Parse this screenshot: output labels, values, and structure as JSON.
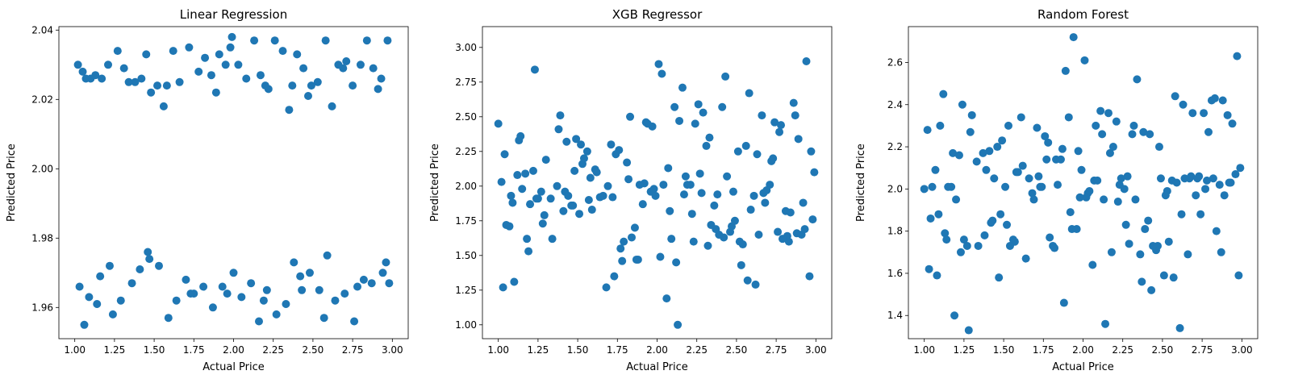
{
  "figure": {
    "background": "#ffffff",
    "marker_color": "#1f77b4"
  },
  "chart_data": [
    {
      "type": "scatter",
      "title": "Linear Regression",
      "xlabel": "Actual Price",
      "ylabel": "Predicted Price",
      "xlim": [
        0.9,
        3.1
      ],
      "ylim": [
        1.951,
        2.041
      ],
      "xticks": [
        "1.00",
        "1.25",
        "1.50",
        "1.75",
        "2.00",
        "2.25",
        "2.50",
        "2.75",
        "3.00"
      ],
      "yticks": [
        "1.96",
        "1.98",
        "2.00",
        "2.02",
        "2.04"
      ],
      "grid": false,
      "series": [
        {
          "color": "#1f77b4",
          "x": [
            1.02,
            1.05,
            1.07,
            1.13,
            1.17,
            1.21,
            1.27,
            1.31,
            1.38,
            1.45,
            1.48,
            1.52,
            1.56,
            1.62,
            1.66,
            1.72,
            1.78,
            1.82,
            1.86,
            1.91,
            1.95,
            1.99,
            2.03,
            2.08,
            2.13,
            2.17,
            2.22,
            2.26,
            2.31,
            2.35,
            2.4,
            2.44,
            2.49,
            2.53,
            2.58,
            2.62,
            2.66,
            2.71,
            2.75,
            2.8,
            2.84,
            2.88,
            2.93,
            2.97,
            1.1,
            1.34,
            1.58,
            1.89,
            2.2,
            2.47,
            2.69,
            2.91,
            1.42,
            1.98,
            2.37,
            1.03,
            1.09,
            1.16,
            1.24,
            1.29,
            1.36,
            1.41,
            1.47,
            1.53,
            1.59,
            1.64,
            1.7,
            1.75,
            1.81,
            1.87,
            1.93,
            2.0,
            2.05,
            2.11,
            2.16,
            2.21,
            2.27,
            2.33,
            2.38,
            2.43,
            2.48,
            2.54,
            2.59,
            2.64,
            2.7,
            2.76,
            2.82,
            2.87,
            2.94,
            2.98,
            1.06,
            1.14,
            1.22,
            1.46,
            1.73,
            1.96,
            2.19,
            2.42,
            2.57,
            2.78,
            2.96
          ],
          "y": [
            2.03,
            2.028,
            2.026,
            2.027,
            2.026,
            2.03,
            2.034,
            2.029,
            2.025,
            2.033,
            2.022,
            2.024,
            2.018,
            2.034,
            2.025,
            2.035,
            2.028,
            2.032,
            2.027,
            2.033,
            2.03,
            2.038,
            2.03,
            2.026,
            2.037,
            2.027,
            2.023,
            2.037,
            2.034,
            2.017,
            2.033,
            2.029,
            2.024,
            2.025,
            2.037,
            2.018,
            2.03,
            2.031,
            2.024,
            2.03,
            2.037,
            2.029,
            2.026,
            2.037,
            2.026,
            2.025,
            2.024,
            2.022,
            2.024,
            2.021,
            2.029,
            2.023,
            2.026,
            2.035,
            2.024,
            1.966,
            1.963,
            1.969,
            1.958,
            1.962,
            1.967,
            1.971,
            1.974,
            1.972,
            1.957,
            1.962,
            1.968,
            1.964,
            1.966,
            1.96,
            1.966,
            1.97,
            1.963,
            1.967,
            1.956,
            1.965,
            1.958,
            1.961,
            1.973,
            1.965,
            1.97,
            1.965,
            1.975,
            1.962,
            1.964,
            1.956,
            1.968,
            1.967,
            1.97,
            1.967,
            1.955,
            1.961,
            1.972,
            1.976,
            1.964,
            1.964,
            1.962,
            1.969,
            1.957,
            1.966,
            1.973
          ]
        }
      ]
    },
    {
      "type": "scatter",
      "title": "XGB Regressor",
      "xlabel": "Actual Price",
      "ylabel": "Predicted Price",
      "xlim": [
        0.9,
        3.1
      ],
      "ylim": [
        0.9,
        3.15
      ],
      "xticks": [
        "1.00",
        "1.25",
        "1.50",
        "1.75",
        "2.00",
        "2.25",
        "2.50",
        "2.75",
        "3.00"
      ],
      "yticks": [
        "1.00",
        "1.25",
        "1.50",
        "1.75",
        "2.00",
        "2.25",
        "2.50",
        "2.75",
        "3.00"
      ],
      "grid": false,
      "series": [
        {
          "color": "#1f77b4",
          "x": [
            1.0,
            1.03,
            1.05,
            1.08,
            1.1,
            1.13,
            1.15,
            1.18,
            1.2,
            1.23,
            1.25,
            1.28,
            1.3,
            1.33,
            1.38,
            1.41,
            1.43,
            1.46,
            1.48,
            1.51,
            1.53,
            1.56,
            1.58,
            1.61,
            1.66,
            1.68,
            1.71,
            1.73,
            1.76,
            1.78,
            1.81,
            1.83,
            1.86,
            1.88,
            1.91,
            1.93,
            1.96,
            1.98,
            2.01,
            2.03,
            2.06,
            2.08,
            2.11,
            2.13,
            2.16,
            2.18,
            2.21,
            2.23,
            2.26,
            2.28,
            2.31,
            2.33,
            2.36,
            2.38,
            2.41,
            2.43,
            2.46,
            2.48,
            2.51,
            2.53,
            2.56,
            2.58,
            2.61,
            2.63,
            2.66,
            2.68,
            2.71,
            2.73,
            2.76,
            2.78,
            2.81,
            2.83,
            2.86,
            2.88,
            2.91,
            2.93,
            2.96,
            2.98,
            1.02,
            1.07,
            1.12,
            1.17,
            1.22,
            1.27,
            1.37,
            1.42,
            1.47,
            1.52,
            1.57,
            1.62,
            1.72,
            1.77,
            1.82,
            1.87,
            1.92,
            1.97,
            2.02,
            2.07,
            2.12,
            2.17,
            2.22,
            2.27,
            2.32,
            2.37,
            2.42,
            2.47,
            2.52,
            2.57,
            2.62,
            2.67,
            2.72,
            2.77,
            2.82,
            2.87,
            2.92,
            2.97,
            1.04,
            1.09,
            1.14,
            1.19,
            1.24,
            1.29,
            1.34,
            1.39,
            1.44,
            1.49,
            1.54,
            1.59,
            1.64,
            1.69,
            1.74,
            1.79,
            1.84,
            1.89,
            1.94,
            1.99,
            2.04,
            2.09,
            2.14,
            2.19,
            2.24,
            2.29,
            2.34,
            2.39,
            2.44,
            2.49,
            2.54,
            2.59,
            2.64,
            2.69,
            2.74,
            2.79,
            2.84,
            2.89,
            2.94,
            2.99
          ],
          "y": [
            2.45,
            1.27,
            1.72,
            1.93,
            1.31,
            2.33,
            1.98,
            1.62,
            1.87,
            2.84,
            1.91,
            1.73,
            2.19,
            1.91,
            2.41,
            1.82,
            2.32,
            1.86,
            2.11,
            1.8,
            2.16,
            2.25,
            2.06,
            2.12,
            1.93,
            1.27,
            2.3,
            1.35,
            2.26,
            1.46,
            2.17,
            2.5,
            1.7,
            1.47,
            1.87,
            2.46,
            1.96,
            1.98,
            2.88,
            2.81,
            1.19,
            1.82,
            2.57,
            1.0,
            2.71,
            2.07,
            2.01,
            1.6,
            2.59,
            1.95,
            2.29,
            2.35,
            1.86,
            1.94,
            2.57,
            2.79,
            1.67,
            1.96,
            2.25,
            1.43,
            2.29,
            2.67,
            1.93,
            2.23,
            2.51,
            1.88,
            2.01,
            2.2,
            1.67,
            2.44,
            1.82,
            1.6,
            2.6,
            1.66,
            1.65,
            1.69,
            1.35,
            1.76,
            2.03,
            1.71,
            2.08,
            2.09,
            2.11,
            1.96,
            2.0,
            1.96,
            1.86,
            2.3,
            1.9,
            2.1,
            1.92,
            1.55,
            2.05,
            1.47,
            2.02,
            2.43,
            1.49,
            2.13,
            1.45,
            1.94,
            1.8,
            2.09,
            1.57,
            1.69,
            1.63,
            1.71,
            1.6,
            1.32,
            1.29,
            1.95,
            2.18,
            2.39,
            1.64,
            2.51,
            1.88,
            2.25,
            2.23,
            1.88,
            2.36,
            1.53,
            1.91,
            1.79,
            1.62,
            2.51,
            1.93,
            2.34,
            2.2,
            1.83,
            1.92,
            2.0,
            2.23,
            1.6,
            1.63,
            2.01,
            2.45,
            1.93,
            2.01,
            1.62,
            2.47,
            2.01,
            2.45,
            2.53,
            1.72,
            1.65,
            2.07,
            1.75,
            1.58,
            1.83,
            1.65,
            1.97,
            2.46,
            1.62,
            1.81,
            2.34,
            2.9,
            2.1
          ]
        }
      ]
    },
    {
      "type": "scatter",
      "title": "Random Forest",
      "xlabel": "Actual Price",
      "ylabel": "Predicted Price",
      "xlim": [
        0.9,
        3.1
      ],
      "ylim": [
        1.29,
        2.77
      ],
      "xticks": [
        "1.00",
        "1.25",
        "1.50",
        "1.75",
        "2.00",
        "2.25",
        "2.50",
        "2.75",
        "3.00"
      ],
      "yticks": [
        "1.4",
        "1.6",
        "1.8",
        "2.0",
        "2.2",
        "2.4",
        "2.6"
      ],
      "grid": false,
      "series": [
        {
          "color": "#1f77b4",
          "x": [
            1.0,
            1.03,
            1.05,
            1.08,
            1.1,
            1.13,
            1.15,
            1.18,
            1.2,
            1.23,
            1.25,
            1.28,
            1.3,
            1.33,
            1.38,
            1.41,
            1.43,
            1.46,
            1.48,
            1.51,
            1.53,
            1.56,
            1.58,
            1.61,
            1.66,
            1.68,
            1.71,
            1.73,
            1.76,
            1.78,
            1.81,
            1.83,
            1.86,
            1.88,
            1.91,
            1.93,
            1.96,
            1.98,
            2.01,
            2.03,
            2.06,
            2.08,
            2.11,
            2.13,
            2.16,
            2.18,
            2.21,
            2.23,
            2.26,
            2.28,
            2.31,
            2.33,
            2.36,
            2.38,
            2.41,
            2.43,
            2.46,
            2.48,
            2.51,
            2.53,
            2.56,
            2.58,
            2.61,
            2.63,
            2.66,
            2.68,
            2.71,
            2.73,
            2.76,
            2.78,
            2.81,
            2.83,
            2.86,
            2.88,
            2.91,
            2.93,
            2.96,
            2.98,
            1.02,
            1.07,
            1.12,
            1.17,
            1.22,
            1.27,
            1.37,
            1.42,
            1.47,
            1.52,
            1.57,
            1.62,
            1.72,
            1.77,
            1.82,
            1.87,
            1.92,
            1.97,
            2.02,
            2.07,
            2.12,
            2.17,
            2.22,
            2.27,
            2.32,
            2.37,
            2.42,
            2.47,
            2.52,
            2.57,
            2.62,
            2.67,
            2.72,
            2.77,
            2.82,
            2.87,
            2.92,
            2.97,
            1.04,
            1.09,
            1.14,
            1.19,
            1.24,
            1.29,
            1.34,
            1.39,
            1.44,
            1.49,
            1.54,
            1.59,
            1.64,
            1.69,
            1.74,
            1.79,
            1.84,
            1.89,
            1.94,
            1.99,
            2.04,
            2.09,
            2.14,
            2.19,
            2.24,
            2.29,
            2.34,
            2.39,
            2.44,
            2.49,
            2.54,
            2.59,
            2.64,
            2.69,
            2.74,
            2.79,
            2.84,
            2.89,
            2.94,
            2.99
          ],
          "y": [
            2.0,
            1.62,
            2.01,
            1.59,
            2.3,
            1.79,
            2.01,
            2.17,
            1.95,
            1.7,
            1.76,
            1.33,
            2.35,
            2.13,
            1.78,
            2.18,
            1.85,
            2.2,
            1.88,
            2.01,
            2.3,
            1.76,
            2.08,
            2.34,
            2.05,
            1.98,
            2.29,
            2.01,
            2.25,
            2.22,
            1.73,
            2.14,
            2.14,
            1.46,
            2.34,
            1.81,
            1.81,
            1.96,
            2.61,
            1.98,
            1.64,
            2.3,
            2.37,
            1.95,
            2.36,
            1.7,
            2.32,
            2.02,
            2.0,
            2.06,
            2.26,
            1.95,
            1.69,
            2.27,
            1.85,
            1.52,
            1.71,
            2.2,
            1.59,
            1.99,
            2.04,
            2.44,
            1.34,
            2.4,
            1.69,
            2.06,
            1.97,
            2.06,
            2.36,
            2.04,
            2.42,
            2.43,
            2.02,
            2.42,
            2.35,
            2.03,
            2.07,
            1.59,
            2.28,
            2.09,
            2.45,
            2.01,
            2.16,
            1.73,
            2.17,
            1.84,
            1.58,
            1.83,
            1.75,
            2.11,
            2.06,
            2.14,
            1.72,
            2.19,
            1.89,
            2.18,
            1.96,
            2.04,
            2.26,
            2.17,
            1.94,
            1.83,
            2.3,
            1.56,
            2.26,
            1.73,
            1.97,
            1.58,
            1.88,
            2.05,
            2.05,
            2.0,
            2.05,
            1.7,
            2.03,
            2.63,
            1.86,
            1.88,
            1.76,
            1.4,
            2.4,
            2.27,
            1.73,
            2.09,
            2.05,
            2.23,
            1.73,
            2.08,
            1.67,
            1.95,
            2.01,
            1.77,
            2.02,
            2.56,
            2.72,
            2.09,
            1.99,
            2.04,
            1.36,
            2.2,
            2.05,
            1.74,
            2.52,
            1.81,
            1.73,
            2.05,
            1.75,
            2.03,
            2.05,
            2.36,
            1.88,
            2.27,
            1.8,
            1.97,
            2.31,
            2.1
          ]
        }
      ]
    }
  ]
}
